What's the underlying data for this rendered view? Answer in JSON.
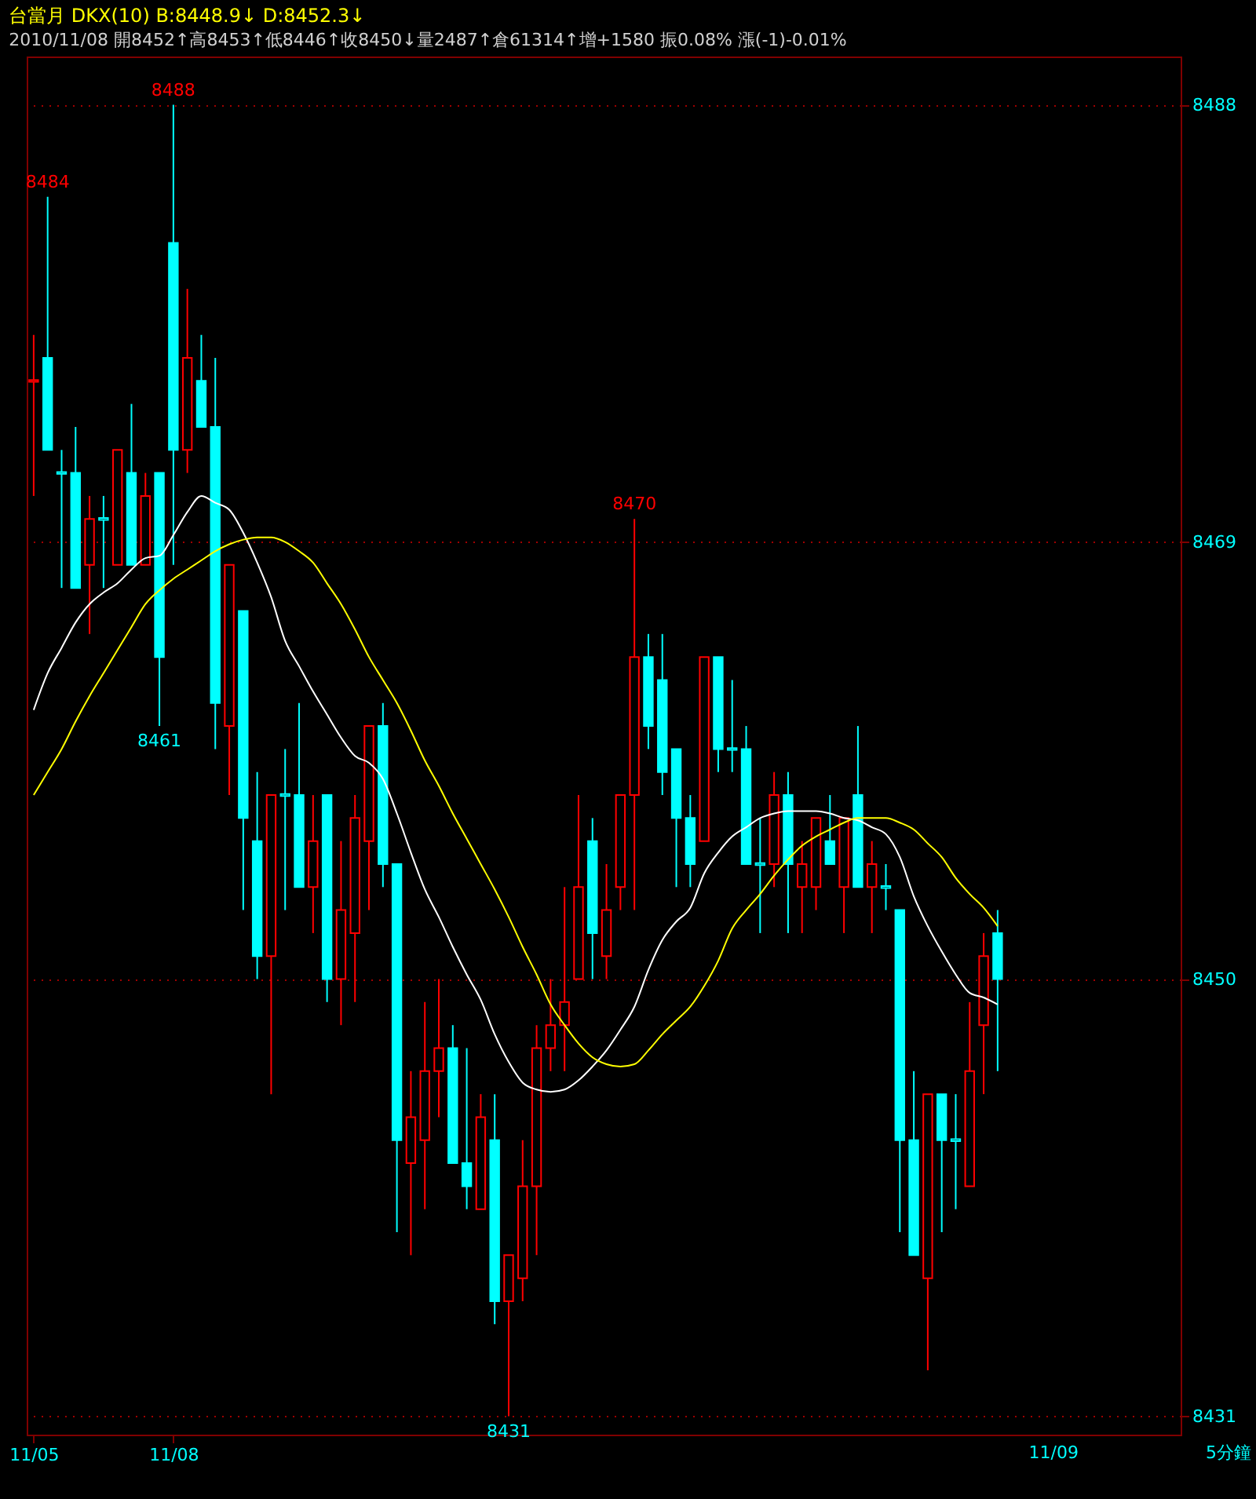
{
  "chart_data": {
    "type": "candlestick",
    "title": "台當月 DKX(10) B:8448.9↓ D:8452.3↓",
    "subtitle": "2010/11/08 開8452↑高8453↑低8446↑收8450↓量2487↑倉61314↑增+1580 振0.08% 漲(-1)-0.01%",
    "categories": [
      "11/05",
      null,
      null,
      null,
      null,
      null,
      null,
      null,
      null,
      null,
      "11/08",
      null,
      null,
      null,
      null,
      null,
      null,
      null,
      null,
      null,
      null,
      null,
      null,
      null,
      null,
      null,
      null,
      null,
      null,
      null,
      null,
      null,
      null,
      null,
      null,
      null,
      null,
      null,
      null,
      null,
      null,
      null,
      null,
      null,
      null,
      null,
      null,
      null,
      null,
      null,
      null,
      null,
      null,
      null,
      null,
      null,
      null,
      null,
      null,
      null,
      null,
      null,
      null,
      null,
      null,
      null,
      null,
      null,
      null,
      null
    ],
    "ohlc": [
      [
        8476,
        8478,
        8471,
        8476
      ],
      [
        8477,
        8484,
        8473,
        8473
      ],
      [
        8472,
        8473,
        8467,
        8472
      ],
      [
        8472,
        8474,
        8467,
        8467
      ],
      [
        8468,
        8471,
        8465,
        8470
      ],
      [
        8470,
        8471,
        8467,
        8470
      ],
      [
        8468,
        8473,
        8468,
        8473
      ],
      [
        8472,
        8475,
        8468,
        8468
      ],
      [
        8468,
        8472,
        8468,
        8471
      ],
      [
        8472,
        8472,
        8461,
        8464
      ],
      [
        8482,
        8488,
        8468,
        8473
      ],
      [
        8473,
        8480,
        8472,
        8477
      ],
      [
        8476,
        8478,
        8474,
        8474
      ],
      [
        8474,
        8477,
        8460,
        8462
      ],
      [
        8461,
        8468,
        8458,
        8468
      ],
      [
        8466,
        8466,
        8453,
        8457
      ],
      [
        8456,
        8459,
        8450,
        8451
      ],
      [
        8451,
        8458,
        8445,
        8458
      ],
      [
        8458,
        8460,
        8453,
        8458
      ],
      [
        8458,
        8462,
        8454,
        8454
      ],
      [
        8454,
        8458,
        8452,
        8456
      ],
      [
        8458,
        8458,
        8449,
        8450
      ],
      [
        8450,
        8456,
        8448,
        8453
      ],
      [
        8452,
        8458,
        8449,
        8457
      ],
      [
        8456,
        8461,
        8453,
        8461
      ],
      [
        8461,
        8462,
        8454,
        8455
      ],
      [
        8455,
        8455,
        8439,
        8443
      ],
      [
        8442,
        8446,
        8438,
        8444
      ],
      [
        8443,
        8449,
        8440,
        8446
      ],
      [
        8446,
        8450,
        8444,
        8447
      ],
      [
        8447,
        8448,
        8442,
        8442
      ],
      [
        8442,
        8447,
        8440,
        8441
      ],
      [
        8440,
        8445,
        8440,
        8444
      ],
      [
        8443,
        8445,
        8435,
        8436
      ],
      [
        8436,
        8438,
        8431,
        8438
      ],
      [
        8437,
        8443,
        8436,
        8441
      ],
      [
        8441,
        8448,
        8438,
        8447
      ],
      [
        8447,
        8450,
        8446,
        8448
      ],
      [
        8448,
        8454,
        8446,
        8449
      ],
      [
        8450,
        8458,
        8450,
        8454
      ],
      [
        8456,
        8457,
        8450,
        8452
      ],
      [
        8451,
        8455,
        8450,
        8453
      ],
      [
        8454,
        8458,
        8453,
        8458
      ],
      [
        8458,
        8470,
        8453,
        8464
      ],
      [
        8464,
        8465,
        8460,
        8461
      ],
      [
        8463,
        8465,
        8458,
        8459
      ],
      [
        8460,
        8460,
        8454,
        8457
      ],
      [
        8457,
        8458,
        8454,
        8455
      ],
      [
        8456,
        8464,
        8456,
        8464
      ],
      [
        8464,
        8464,
        8459,
        8460
      ],
      [
        8460,
        8463,
        8459,
        8460
      ],
      [
        8460,
        8461,
        8455,
        8455
      ],
      [
        8455,
        8457,
        8452,
        8455
      ],
      [
        8455,
        8459,
        8454,
        8458
      ],
      [
        8458,
        8459,
        8452,
        8455
      ],
      [
        8454,
        8456,
        8452,
        8455
      ],
      [
        8454,
        8457,
        8453,
        8457
      ],
      [
        8456,
        8458,
        8455,
        8455
      ],
      [
        8454,
        8457,
        8452,
        8457
      ],
      [
        8458,
        8461,
        8454,
        8454
      ],
      [
        8454,
        8456,
        8452,
        8455
      ],
      [
        8454,
        8455,
        8453,
        8454
      ],
      [
        8453,
        8453,
        8439,
        8443
      ],
      [
        8443,
        8446,
        8438,
        8438
      ],
      [
        8437,
        8445,
        8433,
        8445
      ],
      [
        8445,
        8445,
        8439,
        8443
      ],
      [
        8443,
        8445,
        8440,
        8443
      ],
      [
        8441,
        8449,
        8441,
        8446
      ],
      [
        8448,
        8452,
        8445,
        8451
      ],
      [
        8452,
        8453,
        8446,
        8450
      ]
    ],
    "colors": [
      "#ff0000",
      "#00ffff",
      "#00ffff",
      "#00ffff",
      "#ff0000",
      "#00ffff",
      "#ff0000",
      "#00ffff",
      "#ff0000",
      "#00ffff",
      "#00ffff",
      "#ff0000",
      "#00ffff",
      "#00ffff",
      "#ff0000",
      "#00ffff",
      "#00ffff",
      "#ff0000",
      "#00ffff",
      "#00ffff",
      "#ff0000",
      "#00ffff",
      "#ff0000",
      "#ff0000",
      "#ff0000",
      "#00ffff",
      "#00ffff",
      "#ff0000",
      "#ff0000",
      "#ff0000",
      "#00ffff",
      "#00ffff",
      "#ff0000",
      "#00ffff",
      "#ff0000",
      "#ff0000",
      "#ff0000",
      "#ff0000",
      "#ff0000",
      "#ff0000",
      "#00ffff",
      "#ff0000",
      "#ff0000",
      "#ff0000",
      "#00ffff",
      "#00ffff",
      "#00ffff",
      "#00ffff",
      "#ff0000",
      "#00ffff",
      "#00ffff",
      "#00ffff",
      "#00ffff",
      "#ff0000",
      "#00ffff",
      "#ff0000",
      "#ff0000",
      "#00ffff",
      "#ff0000",
      "#00ffff",
      "#ff0000",
      "#00ffff",
      "#00ffff",
      "#00ffff",
      "#ff0000",
      "#00ffff",
      "#00ffff",
      "#ff0000",
      "#ff0000",
      "#00ffff"
    ],
    "series": [
      {
        "type": "line",
        "color": "#ffffff",
        "values": [
          8461.7,
          8463.3,
          8464.4,
          8465.5,
          8466.3,
          8466.8,
          8467.2,
          8467.8,
          8468.3,
          8468.4,
          8469.3,
          8470.3,
          8471.0,
          8470.7,
          8470.4,
          8469.4,
          8468.1,
          8466.6,
          8464.7,
          8463.6,
          8462.5,
          8461.5,
          8460.5,
          8459.7,
          8459.4,
          8458.7,
          8457.2,
          8455.5,
          8453.9,
          8452.7,
          8451.4,
          8450.2,
          8449.1,
          8447.6,
          8446.4,
          8445.5,
          8445.2,
          8445.1,
          8445.2,
          8445.6,
          8446.2,
          8446.9,
          8447.8,
          8448.8,
          8450.4,
          8451.7,
          8452.5,
          8453.1,
          8454.6,
          8455.5,
          8456.2,
          8456.6,
          8457.0,
          8457.2,
          8457.3,
          8457.3,
          8457.3,
          8457.2,
          8457.0,
          8456.9,
          8456.6,
          8456.3,
          8455.3,
          8453.6,
          8452.3,
          8451.2,
          8450.2,
          8449.4,
          8449.2,
          8448.9
        ]
      },
      {
        "type": "line",
        "color": "#ffff00",
        "values": [
          8458.0,
          8459.0,
          8460.0,
          8461.2,
          8462.3,
          8463.3,
          8464.3,
          8465.3,
          8466.3,
          8466.9,
          8467.4,
          8467.8,
          8468.2,
          8468.6,
          8468.9,
          8469.1,
          8469.2,
          8469.2,
          8469.0,
          8468.6,
          8468.1,
          8467.2,
          8466.3,
          8465.2,
          8464.0,
          8463.0,
          8462.0,
          8460.8,
          8459.5,
          8458.4,
          8457.2,
          8456.1,
          8455.0,
          8453.9,
          8452.7,
          8451.4,
          8450.2,
          8448.9,
          8448.0,
          8447.2,
          8446.6,
          8446.3,
          8446.2,
          8446.3,
          8446.9,
          8447.6,
          8448.2,
          8448.8,
          8449.7,
          8450.8,
          8452.2,
          8453.0,
          8453.7,
          8454.5,
          8455.2,
          8455.8,
          8456.2,
          8456.5,
          8456.8,
          8457.0,
          8457.0,
          8457.0,
          8456.8,
          8456.5,
          8455.9,
          8455.3,
          8454.4,
          8453.7,
          8453.1,
          8452.3
        ]
      }
    ],
    "ylim": [
      8430.2,
      8490.1
    ],
    "yticks": [
      8431,
      8450,
      8469,
      8488
    ],
    "grid": "y",
    "annotations": [
      {
        "text": "8488",
        "y": 8488
      },
      {
        "text": "8484",
        "y": 8484
      },
      {
        "text": "8461",
        "y": 8461
      },
      {
        "text": "8470",
        "y": 8470
      },
      {
        "text": "8431",
        "y": 8431
      },
      "11/09",
      "5分鐘"
    ]
  }
}
